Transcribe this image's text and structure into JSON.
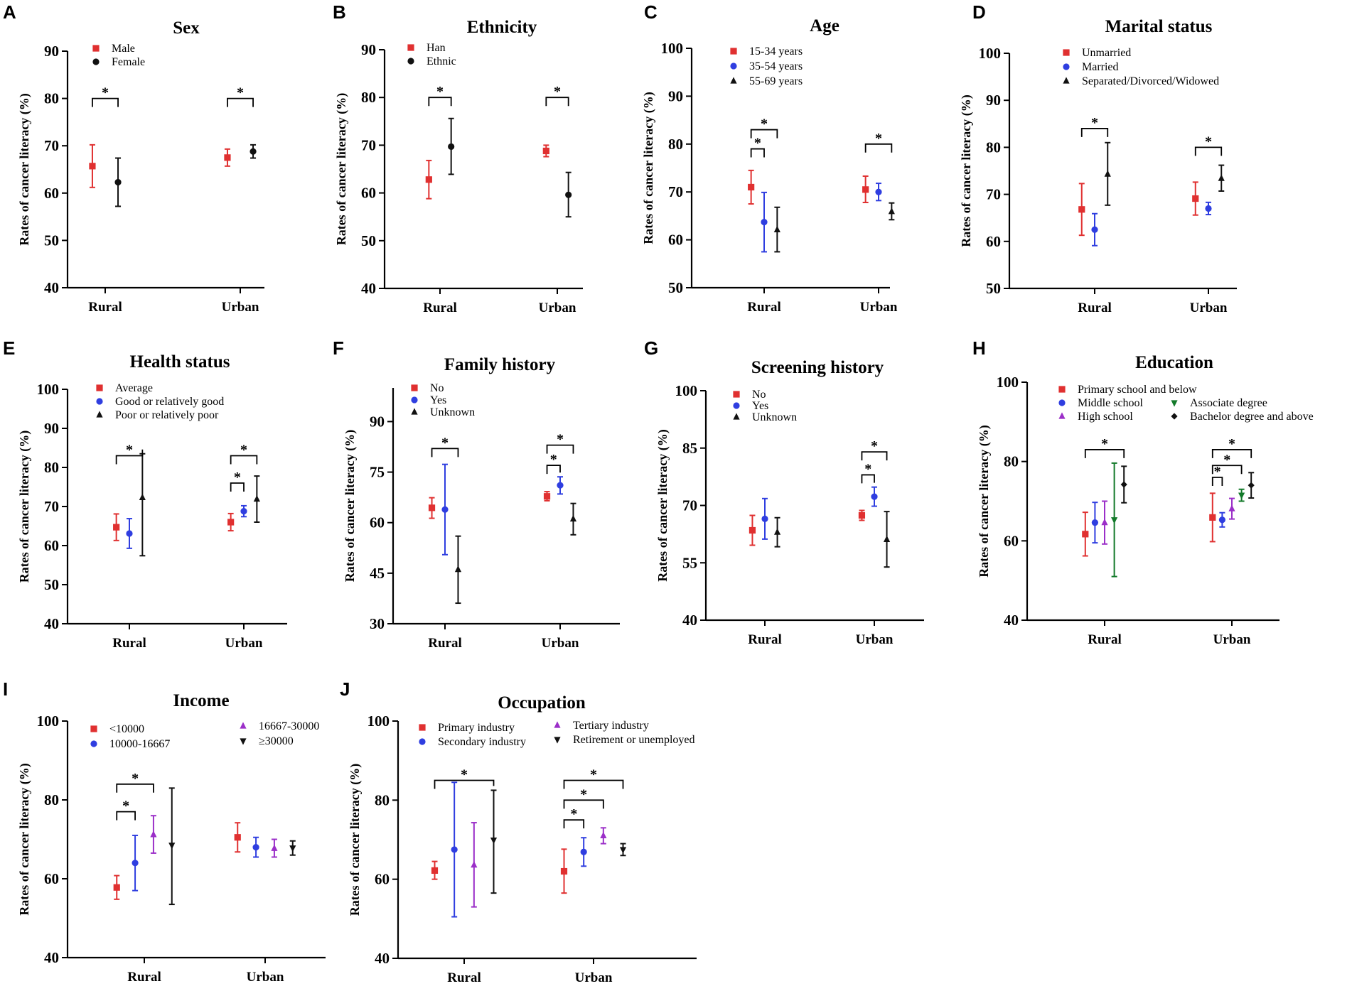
{
  "figure": {
    "y_axis_label": "Rates of cancer literacy (%)",
    "groups": [
      "Rural",
      "Urban"
    ]
  },
  "chart_data": [
    {
      "id": "A",
      "type": "errorbar",
      "title": "Sex",
      "ylabel": "Rates of cancer literacy (%)",
      "ylim": [
        40,
        90
      ],
      "ticks": [
        40,
        50,
        60,
        70,
        80,
        90
      ],
      "categories": [
        "Rural",
        "Urban"
      ],
      "series": [
        {
          "name": "Male",
          "color": "#e03030",
          "marker": "square",
          "means": [
            65.7,
            67.5
          ],
          "lows": [
            61.2,
            65.7
          ],
          "highs": [
            70.2,
            69.3
          ]
        },
        {
          "name": "Female",
          "color": "#111111",
          "marker": "circle",
          "means": [
            62.3,
            68.8
          ],
          "lows": [
            57.2,
            67.4
          ],
          "highs": [
            67.4,
            70.2
          ]
        }
      ],
      "significance": [
        {
          "group": 0,
          "from": 0,
          "to": 1,
          "y": 80,
          "label": "*"
        },
        {
          "group": 1,
          "from": 0,
          "to": 1,
          "y": 80,
          "label": "*"
        }
      ]
    },
    {
      "id": "B",
      "type": "errorbar",
      "title": "Ethnicity",
      "ylabel": "Rates of cancer literacy (%)",
      "ylim": [
        40,
        90
      ],
      "ticks": [
        40,
        50,
        60,
        70,
        80,
        90
      ],
      "categories": [
        "Rural",
        "Urban"
      ],
      "series": [
        {
          "name": "Han",
          "color": "#e03030",
          "marker": "square",
          "means": [
            62.8,
            68.8
          ],
          "lows": [
            58.8,
            67.6
          ],
          "highs": [
            66.8,
            70.0
          ]
        },
        {
          "name": "Ethnic",
          "color": "#111111",
          "marker": "circle",
          "means": [
            69.7,
            59.6
          ],
          "lows": [
            63.9,
            55.0
          ],
          "highs": [
            75.6,
            64.3
          ]
        }
      ],
      "significance": [
        {
          "group": 0,
          "from": 0,
          "to": 1,
          "y": 80,
          "label": "*"
        },
        {
          "group": 1,
          "from": 0,
          "to": 1,
          "y": 80,
          "label": "*"
        }
      ]
    },
    {
      "id": "C",
      "type": "errorbar",
      "title": "Age",
      "ylabel": "Rates of cancer literacy (%)",
      "ylim": [
        50,
        100
      ],
      "ticks": [
        50,
        60,
        70,
        80,
        90,
        100
      ],
      "categories": [
        "Rural",
        "Urban"
      ],
      "series": [
        {
          "name": "15-34 years",
          "color": "#e03030",
          "marker": "square",
          "means": [
            71.0,
            70.5
          ],
          "lows": [
            67.5,
            67.8
          ],
          "highs": [
            74.5,
            73.3
          ]
        },
        {
          "name": "35-54 years",
          "color": "#2f3ee0",
          "marker": "circle",
          "means": [
            63.7,
            70.0
          ],
          "lows": [
            57.5,
            68.2
          ],
          "highs": [
            69.9,
            71.8
          ]
        },
        {
          "name": "55-69 years",
          "color": "#111111",
          "marker": "triangle",
          "means": [
            62.1,
            65.9
          ],
          "lows": [
            57.5,
            64.2
          ],
          "highs": [
            66.8,
            67.7
          ]
        }
      ],
      "significance": [
        {
          "group": 0,
          "from": 0,
          "to": 1,
          "y": 79,
          "label": "*"
        },
        {
          "group": 0,
          "from": 0,
          "to": 2,
          "y": 83,
          "label": "*"
        },
        {
          "group": 1,
          "from": 0,
          "to": 2,
          "y": 80,
          "label": "*"
        }
      ]
    },
    {
      "id": "D",
      "type": "errorbar",
      "title": "Marital status",
      "ylabel": "Rates of cancer literacy (%)",
      "ylim": [
        50,
        100
      ],
      "ticks": [
        50,
        60,
        70,
        80,
        90,
        100
      ],
      "categories": [
        "Rural",
        "Urban"
      ],
      "series": [
        {
          "name": "Unmarried",
          "color": "#e03030",
          "marker": "square",
          "means": [
            66.8,
            69.1
          ],
          "lows": [
            61.3,
            65.6
          ],
          "highs": [
            72.3,
            72.6
          ]
        },
        {
          "name": "Married",
          "color": "#2f3ee0",
          "marker": "circle",
          "means": [
            62.5,
            67.0
          ],
          "lows": [
            59.1,
            65.7
          ],
          "highs": [
            65.9,
            68.3
          ]
        },
        {
          "name": "Separated/Divorced/Widowed",
          "color": "#111111",
          "marker": "triangle",
          "means": [
            74.3,
            73.4
          ],
          "lows": [
            67.7,
            70.7
          ],
          "highs": [
            81.0,
            76.2
          ]
        }
      ],
      "significance": [
        {
          "group": 0,
          "from": 0,
          "to": 2,
          "y": 84,
          "label": "*"
        },
        {
          "group": 1,
          "from": 0,
          "to": 2,
          "y": 80,
          "label": "*"
        }
      ]
    },
    {
      "id": "E",
      "type": "errorbar",
      "title": "Health status",
      "ylabel": "Rates of cancer literacy (%)",
      "ylim": [
        40,
        100
      ],
      "ticks": [
        40,
        50,
        60,
        70,
        80,
        90,
        100
      ],
      "categories": [
        "Rural",
        "Urban"
      ],
      "series": [
        {
          "name": "Average",
          "color": "#e03030",
          "marker": "square",
          "means": [
            64.7,
            66.0
          ],
          "lows": [
            61.3,
            63.8
          ],
          "highs": [
            68.1,
            68.2
          ]
        },
        {
          "name": "Good or relatively good",
          "color": "#2f3ee0",
          "marker": "circle",
          "means": [
            63.1,
            68.8
          ],
          "lows": [
            59.3,
            67.4
          ],
          "highs": [
            66.9,
            70.2
          ]
        },
        {
          "name": "Poor or relatively poor",
          "color": "#111111",
          "marker": "triangle",
          "means": [
            72.3,
            71.9
          ],
          "lows": [
            57.4,
            66.0
          ],
          "highs": [
            83.5,
            77.8
          ]
        }
      ],
      "significance": [
        {
          "group": 0,
          "from": 0,
          "to": 2,
          "y": 83,
          "label": "*"
        },
        {
          "group": 1,
          "from": 0,
          "to": 1,
          "y": 76,
          "label": "*"
        },
        {
          "group": 1,
          "from": 0,
          "to": 2,
          "y": 83,
          "label": "*"
        }
      ]
    },
    {
      "id": "F",
      "type": "errorbar",
      "title": "Family history",
      "ylabel": "Rates of cancer literacy (%)",
      "ylim": [
        30,
        100
      ],
      "ticks": [
        30,
        45,
        60,
        75,
        90
      ],
      "categories": [
        "Rural",
        "Urban"
      ],
      "series": [
        {
          "name": "No",
          "color": "#e03030",
          "marker": "square",
          "means": [
            64.4,
            67.8
          ],
          "lows": [
            61.3,
            66.5
          ],
          "highs": [
            67.4,
            69.2
          ]
        },
        {
          "name": "Yes",
          "color": "#2f3ee0",
          "marker": "circle",
          "means": [
            63.9,
            71.1
          ],
          "lows": [
            50.5,
            68.5
          ],
          "highs": [
            77.3,
            73.6
          ]
        },
        {
          "name": "Unknown",
          "color": "#111111",
          "marker": "triangle",
          "means": [
            46.1,
            61.1
          ],
          "lows": [
            36.1,
            56.4
          ],
          "highs": [
            56.0,
            65.7
          ]
        }
      ],
      "significance": [
        {
          "group": 0,
          "from": 0,
          "to": 2,
          "y": 82,
          "label": "*"
        },
        {
          "group": 1,
          "from": 0,
          "to": 1,
          "y": 77,
          "label": "*"
        },
        {
          "group": 1,
          "from": 0,
          "to": 2,
          "y": 83,
          "label": "*"
        }
      ]
    },
    {
      "id": "G",
      "type": "errorbar",
      "title": "Screening history",
      "ylabel": "Rates of cancer literacy (%)",
      "ylim": [
        40,
        100
      ],
      "ticks": [
        40,
        55,
        70,
        85,
        100
      ],
      "categories": [
        "Rural",
        "Urban"
      ],
      "series": [
        {
          "name": "No",
          "color": "#e03030",
          "marker": "square",
          "means": [
            63.5,
            67.4
          ],
          "lows": [
            59.6,
            66.1
          ],
          "highs": [
            67.4,
            68.7
          ]
        },
        {
          "name": "Yes",
          "color": "#2f3ee0",
          "marker": "circle",
          "means": [
            66.5,
            72.3
          ],
          "lows": [
            61.2,
            69.8
          ],
          "highs": [
            71.8,
            74.8
          ]
        },
        {
          "name": "Unknown",
          "color": "#111111",
          "marker": "triangle",
          "means": [
            63.0,
            61.1
          ],
          "lows": [
            59.2,
            53.9
          ],
          "highs": [
            66.8,
            68.4
          ]
        }
      ],
      "significance": [
        {
          "group": 1,
          "from": 0,
          "to": 1,
          "y": 78,
          "label": "*"
        },
        {
          "group": 1,
          "from": 0,
          "to": 2,
          "y": 84,
          "label": "*"
        }
      ]
    },
    {
      "id": "H",
      "type": "errorbar",
      "title": "Education",
      "ylabel": "Rates of cancer literacy (%)",
      "ylim": [
        40,
        100
      ],
      "ticks": [
        40,
        60,
        80,
        100
      ],
      "categories": [
        "Rural",
        "Urban"
      ],
      "series": [
        {
          "name": "Primary school and below",
          "color": "#e03030",
          "marker": "square",
          "means": [
            61.7,
            65.9
          ],
          "lows": [
            56.2,
            59.8
          ],
          "highs": [
            67.2,
            72.0
          ]
        },
        {
          "name": "Middle school",
          "color": "#2f3ee0",
          "marker": "circle",
          "means": [
            64.6,
            65.3
          ],
          "lows": [
            59.5,
            63.5
          ],
          "highs": [
            69.7,
            67.1
          ]
        },
        {
          "name": "High school",
          "color": "#9b2fc8",
          "marker": "triangle",
          "means": [
            64.6,
            68.1
          ],
          "lows": [
            59.2,
            65.5
          ],
          "highs": [
            70.0,
            70.7
          ]
        },
        {
          "name": "Associate degree",
          "color": "#137a2a",
          "marker": "triangle-down",
          "means": [
            65.3,
            71.5
          ],
          "lows": [
            51.0,
            70.0
          ],
          "highs": [
            79.6,
            73.0
          ]
        },
        {
          "name": "Bachelor degree and above",
          "color": "#111111",
          "marker": "diamond",
          "means": [
            74.2,
            74.0
          ],
          "lows": [
            69.6,
            70.8
          ],
          "highs": [
            78.8,
            77.2
          ]
        }
      ],
      "significance": [
        {
          "group": 0,
          "from": 0,
          "to": 4,
          "y": 83,
          "label": "*"
        },
        {
          "group": 1,
          "from": 0,
          "to": 1,
          "y": 76,
          "label": "*"
        },
        {
          "group": 1,
          "from": 0,
          "to": 3,
          "y": 79,
          "label": "*"
        },
        {
          "group": 1,
          "from": 0,
          "to": 4,
          "y": 83,
          "label": "*"
        }
      ]
    },
    {
      "id": "I",
      "type": "errorbar",
      "title": "Income",
      "ylabel": "Rates of cancer literacy (%)",
      "ylim": [
        40,
        100
      ],
      "ticks": [
        40,
        60,
        80,
        100
      ],
      "categories": [
        "Rural",
        "Urban"
      ],
      "series": [
        {
          "name": "<10000",
          "color": "#e03030",
          "marker": "square",
          "means": [
            57.8,
            70.5
          ],
          "lows": [
            54.8,
            66.8
          ],
          "highs": [
            60.8,
            74.2
          ]
        },
        {
          "name": "10000-16667",
          "color": "#2f3ee0",
          "marker": "circle",
          "means": [
            64.0,
            68.0
          ],
          "lows": [
            57.0,
            65.5
          ],
          "highs": [
            71.0,
            70.5
          ]
        },
        {
          "name": "16667-30000",
          "color": "#9b2fc8",
          "marker": "triangle",
          "means": [
            71.2,
            67.7
          ],
          "lows": [
            66.5,
            65.5
          ],
          "highs": [
            76.0,
            70.0
          ]
        },
        {
          "name": "≥30000",
          "color": "#111111",
          "marker": "triangle-down",
          "means": [
            68.5,
            67.8
          ],
          "lows": [
            53.5,
            66.0
          ],
          "highs": [
            83.0,
            69.6
          ]
        }
      ],
      "significance": [
        {
          "group": 0,
          "from": 0,
          "to": 1,
          "y": 77,
          "label": "*"
        },
        {
          "group": 0,
          "from": 0,
          "to": 2,
          "y": 84,
          "label": "*"
        }
      ]
    },
    {
      "id": "J",
      "type": "errorbar",
      "title": "Occupation",
      "ylabel": "Rates of cancer literacy (%)",
      "ylim": [
        40,
        100
      ],
      "ticks": [
        40,
        60,
        80,
        100
      ],
      "categories": [
        "Rural",
        "Urban"
      ],
      "series": [
        {
          "name": "Primary industry",
          "color": "#e03030",
          "marker": "square",
          "means": [
            62.2,
            62.0
          ],
          "lows": [
            60.0,
            56.5
          ],
          "highs": [
            64.5,
            67.6
          ]
        },
        {
          "name": "Secondary industry",
          "color": "#2f3ee0",
          "marker": "circle",
          "means": [
            67.5,
            66.9
          ],
          "lows": [
            50.5,
            63.3
          ],
          "highs": [
            84.5,
            70.5
          ]
        },
        {
          "name": "Tertiary industry",
          "color": "#9b2fc8",
          "marker": "triangle",
          "means": [
            63.6,
            71.0
          ],
          "lows": [
            53.0,
            69.0
          ],
          "highs": [
            74.3,
            73.0
          ]
        },
        {
          "name": "Retirement or unemployed",
          "color": "#111111",
          "marker": "triangle-down",
          "means": [
            69.9,
            67.5
          ],
          "lows": [
            56.5,
            66.0
          ],
          "highs": [
            82.5,
            69.0
          ]
        }
      ],
      "significance": [
        {
          "group": 0,
          "from": 0,
          "to": 3,
          "y": 85,
          "label": "*"
        },
        {
          "group": 1,
          "from": 0,
          "to": 1,
          "y": 75,
          "label": "*"
        },
        {
          "group": 1,
          "from": 0,
          "to": 2,
          "y": 80,
          "label": "*"
        },
        {
          "group": 1,
          "from": 0,
          "to": 3,
          "y": 85,
          "label": "*"
        }
      ]
    }
  ]
}
